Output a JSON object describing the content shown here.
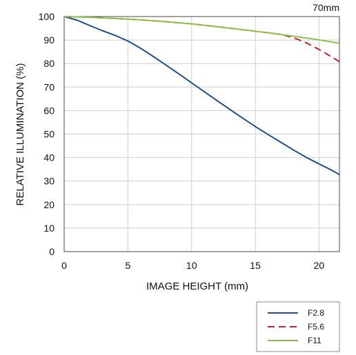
{
  "chart_data": {
    "type": "line",
    "title": "70mm",
    "xlabel": "IMAGE HEIGHT (mm)",
    "ylabel": "RELATIVE ILLUMINATION (%)",
    "xlim": [
      0,
      21.6
    ],
    "ylim": [
      0,
      100
    ],
    "x_ticks": [
      "0",
      "5",
      "10",
      "15",
      "20"
    ],
    "y_ticks": [
      "0",
      "10",
      "20",
      "30",
      "40",
      "50",
      "60",
      "70",
      "80",
      "90",
      "100"
    ],
    "grid": true,
    "legend_position": "bottom-right",
    "series": [
      {
        "name": "F2.8",
        "color": "#1f4e8c",
        "dash": "solid",
        "points": [
          [
            0,
            100
          ],
          [
            1,
            98.5
          ],
          [
            2,
            96.2
          ],
          [
            3,
            94
          ],
          [
            4,
            92
          ],
          [
            5,
            89.6
          ],
          [
            6,
            86.5
          ],
          [
            7,
            83
          ],
          [
            8,
            79.3
          ],
          [
            9,
            75.6
          ],
          [
            10,
            71.8
          ],
          [
            11,
            68
          ],
          [
            12,
            64.2
          ],
          [
            13,
            60.5
          ],
          [
            14,
            56.8
          ],
          [
            15,
            53.2
          ],
          [
            16,
            49.8
          ],
          [
            17,
            46.5
          ],
          [
            18,
            43.2
          ],
          [
            19,
            40.1
          ],
          [
            20,
            37.3
          ],
          [
            21,
            34.6
          ],
          [
            21.6,
            32.8
          ]
        ]
      },
      {
        "name": "F5.6",
        "color": "#cc2222",
        "dash": "dashed",
        "points": [
          [
            0,
            100
          ],
          [
            2,
            99.7
          ],
          [
            4,
            99.2
          ],
          [
            6,
            98.6
          ],
          [
            8,
            97.8
          ],
          [
            10,
            96.9
          ],
          [
            12,
            95.7
          ],
          [
            14,
            94.4
          ],
          [
            16,
            93.1
          ],
          [
            17,
            92.4
          ],
          [
            18,
            91
          ],
          [
            19,
            88.8
          ],
          [
            20,
            86
          ],
          [
            21,
            82.8
          ],
          [
            21.6,
            80.8
          ]
        ]
      },
      {
        "name": "F11",
        "color": "#8dc04a",
        "dash": "solid",
        "points": [
          [
            0,
            100
          ],
          [
            2,
            99.7
          ],
          [
            4,
            99.2
          ],
          [
            6,
            98.6
          ],
          [
            8,
            97.8
          ],
          [
            10,
            96.9
          ],
          [
            12,
            95.7
          ],
          [
            14,
            94.4
          ],
          [
            16,
            93.1
          ],
          [
            18,
            91.6
          ],
          [
            20,
            90.1
          ],
          [
            21.6,
            88.6
          ]
        ]
      }
    ]
  }
}
